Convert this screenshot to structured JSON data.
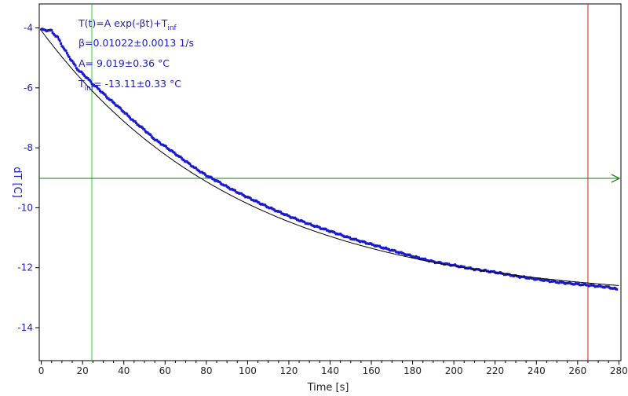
{
  "chart_data": {
    "type": "scatter",
    "xlabel": "Time [s]",
    "ylabel": "dT [C]",
    "xlim": [
      -1,
      281
    ],
    "ylim": [
      -15.1,
      -3.2
    ],
    "x_ticks": [
      0,
      20,
      40,
      60,
      80,
      100,
      120,
      140,
      160,
      180,
      200,
      220,
      240,
      260,
      280
    ],
    "y_ticks": [
      -4,
      -6,
      -8,
      -10,
      -12,
      -14
    ],
    "grid": false,
    "annotations": {
      "model": "T(t)=A exp(-βt)+T",
      "model_sub": "inf",
      "beta": "β=0.01022±0.0013 1/s",
      "amplitude": "A= 9.019±0.36 °C",
      "tinf_prefix": "T",
      "tinf_sub": "inf",
      "tinf_value": "= -13.11±0.33 °C"
    },
    "fit": {
      "A": 9.019,
      "beta": 0.01022,
      "T_inf": -13.11
    },
    "cursors": {
      "green_x": 24.5,
      "red_x": 265,
      "horizontal_y": -9.02
    },
    "series": [
      {
        "values_x": [
          0,
          2,
          4,
          5,
          6,
          8,
          10,
          12,
          14,
          16,
          18,
          20,
          22,
          24,
          25,
          28,
          32,
          36,
          40,
          45,
          50,
          55,
          60,
          65,
          70,
          75,
          80,
          85,
          90,
          95,
          100,
          110,
          120,
          130,
          140,
          150,
          160,
          170,
          180,
          190,
          200,
          210,
          220,
          230,
          240,
          250,
          260,
          265,
          270,
          275,
          279
        ],
        "values_y": [
          -4.05,
          -4.08,
          -4.08,
          -4.1,
          -4.2,
          -4.32,
          -4.58,
          -4.8,
          -5.02,
          -5.22,
          -5.42,
          -5.52,
          -5.66,
          -5.8,
          -5.88,
          -6.05,
          -6.32,
          -6.55,
          -6.8,
          -7.12,
          -7.4,
          -7.72,
          -7.95,
          -8.2,
          -8.45,
          -8.7,
          -8.92,
          -9.1,
          -9.3,
          -9.48,
          -9.65,
          -9.98,
          -10.28,
          -10.55,
          -10.78,
          -11.02,
          -11.22,
          -11.42,
          -11.62,
          -11.8,
          -11.92,
          -12.05,
          -12.15,
          -12.28,
          -12.38,
          -12.48,
          -12.55,
          -12.58,
          -12.62,
          -12.65,
          -12.72
        ],
        "color": "#1a1acc"
      }
    ],
    "colors": {
      "data": "#1a1acc",
      "fit": "#000000",
      "green_cursor": "#33cc33",
      "red_cursor": "#cc2222",
      "horizontal_cursor": "#1a7a1a",
      "axis_text": "#2020c0"
    }
  }
}
